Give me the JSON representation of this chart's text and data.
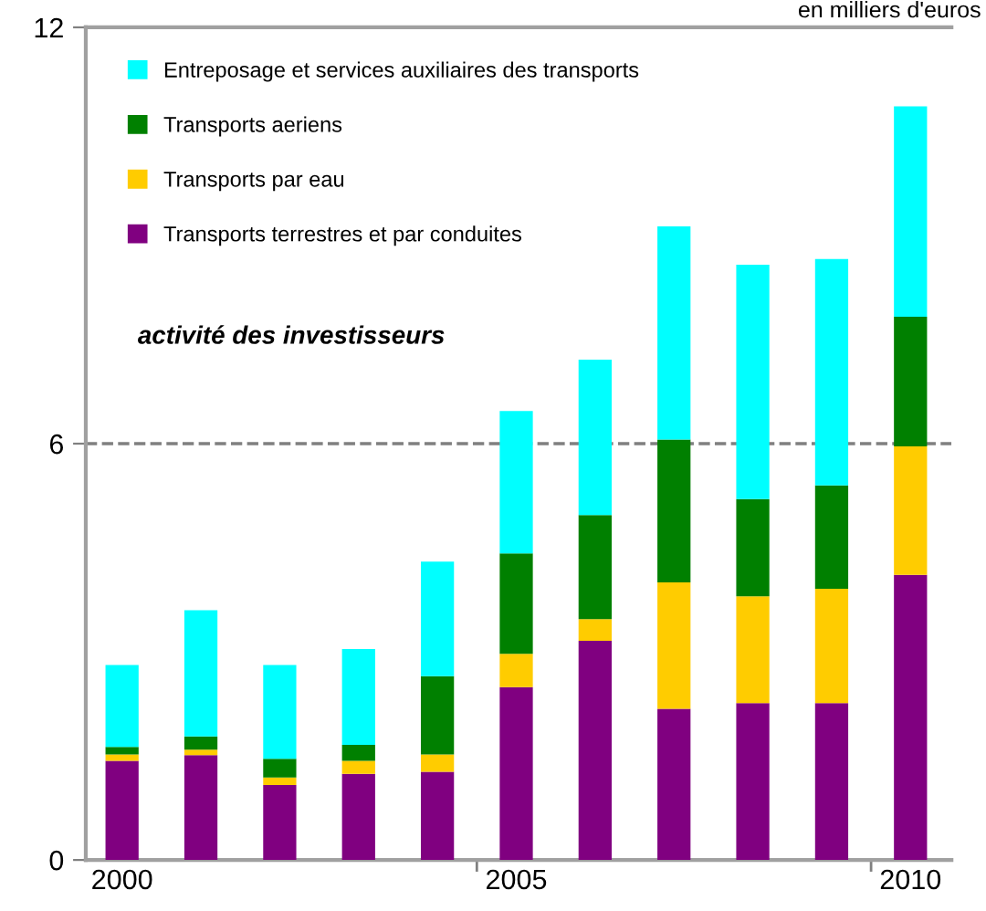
{
  "chart_data": {
    "type": "bar",
    "stacked": true,
    "categories": [
      "2000",
      null,
      null,
      null,
      null,
      "2005",
      null,
      null,
      null,
      null,
      "2010"
    ],
    "series": [
      {
        "name": "Transports terrestres et par conduites",
        "color": "#800080",
        "values": [
          1.43,
          1.51,
          1.08,
          1.24,
          1.27,
          2.49,
          3.16,
          2.18,
          2.26,
          2.26,
          4.11
        ]
      },
      {
        "name": "Transports par eau",
        "color": "#ffcc00",
        "values": [
          0.09,
          0.08,
          0.11,
          0.19,
          0.25,
          0.48,
          0.31,
          1.82,
          1.54,
          1.65,
          1.85
        ]
      },
      {
        "name": "Transports aeriens",
        "color": "#008000",
        "values": [
          0.11,
          0.19,
          0.27,
          0.23,
          1.13,
          1.45,
          1.5,
          2.06,
          1.4,
          1.49,
          1.87
        ]
      },
      {
        "name": "Entreposage et services auxiliaires des transports",
        "color": "#00ffff",
        "values": [
          1.18,
          1.82,
          1.35,
          1.38,
          1.65,
          2.05,
          2.24,
          3.07,
          3.38,
          3.26,
          3.03
        ]
      }
    ],
    "ylim": [
      0,
      12
    ],
    "yticks": [
      0,
      6,
      12
    ],
    "grid": "y",
    "legend": "top left",
    "annotations": [
      "activité des investisseurs",
      "en milliers d'euros"
    ]
  }
}
